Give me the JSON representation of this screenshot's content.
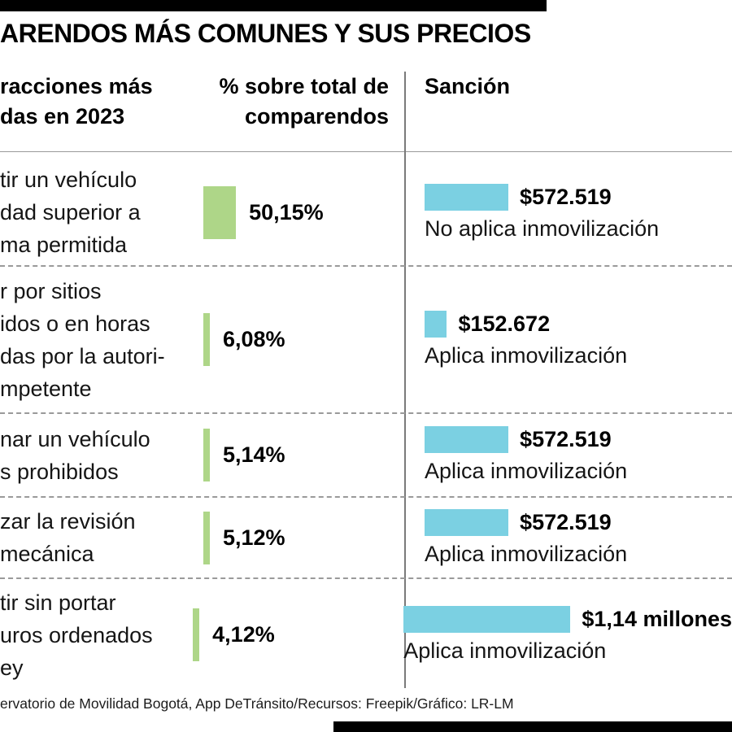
{
  "title": "ARENDOS MÁS COMUNES Y SUS PRECIOS",
  "header": {
    "col_infractions": "racciones más\ndas en 2023",
    "col_percent": "% sobre total de\ncomparendos",
    "col_sanction": "Sanción"
  },
  "rows": [
    {
      "infraction": "tir un vehículo\ndad superior a\nma permitida",
      "percent_label": "50,15%",
      "percent_value": 50.15,
      "price_label": "$572.519",
      "price_value": 572519,
      "immobilization": "No aplica inmovilización"
    },
    {
      "infraction": "r por sitios\nidos o en horas\ndas por la autori-\nmpetente",
      "percent_label": "6,08%",
      "percent_value": 6.08,
      "price_label": "$152.672",
      "price_value": 152672,
      "immobilization": "Aplica inmovilización"
    },
    {
      "infraction": "nar un vehículo\ns prohibidos",
      "percent_label": "5,14%",
      "percent_value": 5.14,
      "price_label": "$572.519",
      "price_value": 572519,
      "immobilization": "Aplica inmovilización"
    },
    {
      "infraction": "zar la revisión\nmecánica",
      "percent_label": "5,12%",
      "percent_value": 5.12,
      "price_label": "$572.519",
      "price_value": 572519,
      "immobilization": "Aplica inmovilización"
    },
    {
      "infraction": "tir sin portar\nuros ordenados\ney",
      "percent_label": "4,12%",
      "percent_value": 4.12,
      "price_label": "$1,14 millones",
      "price_value": 1140000,
      "immobilization": "Aplica inmovilización"
    }
  ],
  "footer": "ervatorio de Movilidad Bogotá, App DeTránsito/Recursos: Freepik/Gráfico: LR-LM",
  "colors": {
    "green_bar": "#aed688",
    "cyan_bar": "#7bd0e2",
    "accent_bar": "#000000"
  },
  "chart_data": {
    "type": "bar",
    "title": "ARENDOS MÁS COMUNES Y SUS PRECIOS",
    "categories": [
      "tir un vehículo dad superior a ma permitida",
      "r por sitios idos o en horas das por la autori- mpetente",
      "nar un vehículo s prohibidos",
      "zar la revisión mecánica",
      "tir sin portar uros ordenados ey"
    ],
    "series": [
      {
        "name": "% sobre total de comparendos",
        "unit": "%",
        "color": "#aed688",
        "values": [
          50.15,
          6.08,
          5.14,
          5.12,
          4.12
        ]
      },
      {
        "name": "Sanción",
        "unit": "COP",
        "color": "#7bd0e2",
        "values": [
          572519,
          152672,
          572519,
          572519,
          1140000
        ]
      }
    ],
    "value_labels_percent": [
      "50,15%",
      "6,08%",
      "5,14%",
      "5,12%",
      "4,12%"
    ],
    "value_labels_price": [
      "$572.519",
      "$152.672",
      "$572.519",
      "$572.519",
      "$1,14 millones"
    ],
    "annotations": [
      "No aplica inmovilización",
      "Aplica inmovilización",
      "Aplica inmovilización",
      "Aplica inmovilización",
      "Aplica inmovilización"
    ],
    "legend_position": "none",
    "grid": false
  }
}
